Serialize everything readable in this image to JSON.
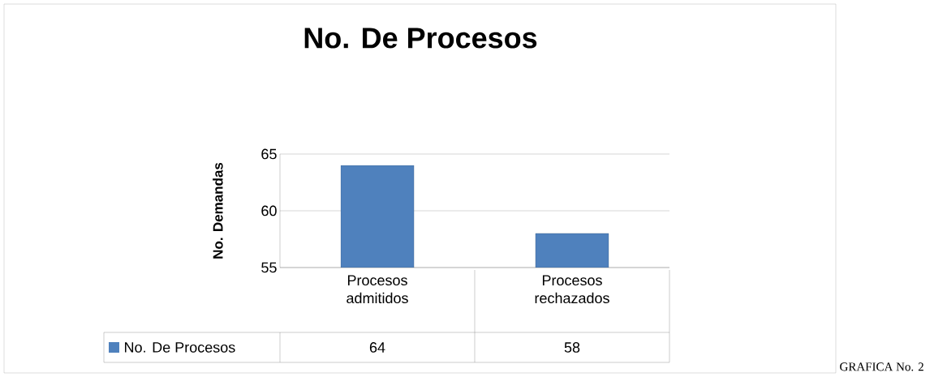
{
  "chart_data": {
    "type": "bar",
    "title": "No. De Procesos",
    "ylabel": "No. Demandas",
    "categories": [
      "Procesos admitidos",
      "Procesos rechazados"
    ],
    "series": [
      {
        "name": "No. De Procesos",
        "color": "#4f81bd",
        "values": [
          64,
          58
        ]
      }
    ],
    "ylim": [
      55,
      65
    ],
    "yticks": [
      55,
      60,
      65
    ],
    "grid": "y",
    "legend": "bottom",
    "data_labels": true,
    "annotations": [
      "GRAFICA No. 2"
    ]
  }
}
